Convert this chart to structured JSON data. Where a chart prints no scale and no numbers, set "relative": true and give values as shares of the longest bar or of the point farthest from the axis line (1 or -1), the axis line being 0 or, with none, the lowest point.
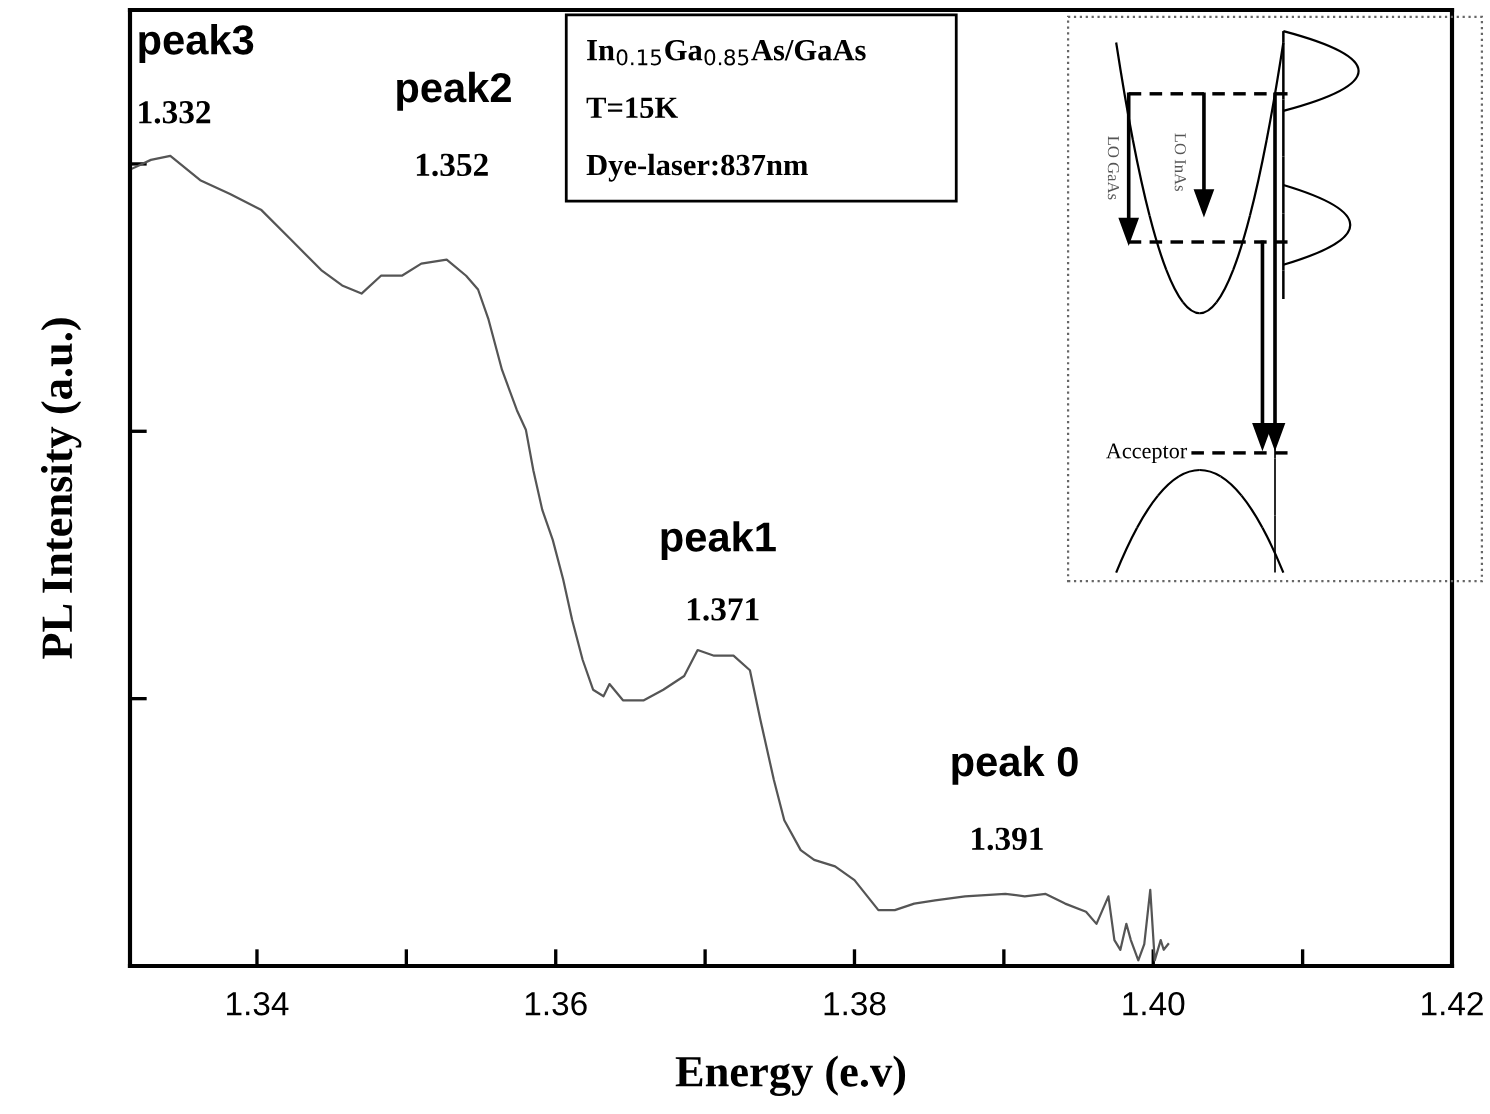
{
  "chart_data": {
    "type": "line",
    "relative": true,
    "xlabel": "Energy (e.v)",
    "ylabel": "PL Intensity (a.u.)",
    "xlim": [
      1.3315,
      1.42
    ],
    "xticks": [
      {
        "value": 1.34,
        "label": "1.34"
      },
      {
        "value": 1.35,
        "label": null
      },
      {
        "value": 1.36,
        "label": "1.36"
      },
      {
        "value": 1.37,
        "label": null
      },
      {
        "value": 1.38,
        "label": "1.38"
      },
      {
        "value": 1.39,
        "label": null
      },
      {
        "value": 1.4,
        "label": "1.40"
      },
      {
        "value": 1.41,
        "label": null
      },
      {
        "value": 1.42,
        "label": "1.42"
      }
    ],
    "grid": false,
    "legend": false,
    "marker": "none",
    "line_style": "solid",
    "series": [
      {
        "color": "#555555",
        "x": [
          1.3315,
          1.3329,
          1.3342,
          1.3362,
          1.3382,
          1.3403,
          1.3423,
          1.3443,
          1.3457,
          1.347,
          1.3483,
          1.3497,
          1.351,
          1.3527,
          1.354,
          1.3548,
          1.3555,
          1.3564,
          1.3574,
          1.358,
          1.3585,
          1.3591,
          1.3598,
          1.3605,
          1.3611,
          1.3618,
          1.3625,
          1.3632,
          1.3636,
          1.3645,
          1.3659,
          1.3672,
          1.3686,
          1.3695,
          1.3706,
          1.3719,
          1.373,
          1.3737,
          1.3746,
          1.3753,
          1.3764,
          1.3773,
          1.3787,
          1.38,
          1.3816,
          1.3827,
          1.384,
          1.3854,
          1.3874,
          1.3901,
          1.3914,
          1.3928,
          1.3941,
          1.3955,
          1.3962,
          1.3966,
          1.397,
          1.3974,
          1.3978,
          1.3982,
          1.3985,
          1.399,
          1.3994,
          1.3998,
          1.4001,
          1.4005,
          1.4007,
          1.401
        ],
        "values": [
          0.983,
          0.995,
          1.0,
          0.97,
          0.953,
          0.933,
          0.896,
          0.859,
          0.84,
          0.83,
          0.852,
          0.852,
          0.867,
          0.872,
          0.852,
          0.835,
          0.798,
          0.736,
          0.686,
          0.662,
          0.612,
          0.563,
          0.526,
          0.477,
          0.427,
          0.378,
          0.341,
          0.333,
          0.348,
          0.328,
          0.328,
          0.341,
          0.358,
          0.39,
          0.383,
          0.383,
          0.365,
          0.304,
          0.23,
          0.18,
          0.143,
          0.131,
          0.123,
          0.106,
          0.069,
          0.069,
          0.077,
          0.081,
          0.086,
          0.089,
          0.086,
          0.089,
          0.077,
          0.067,
          0.052,
          0.069,
          0.086,
          0.032,
          0.02,
          0.052,
          0.032,
          0.007,
          0.027,
          0.094,
          0.007,
          0.032,
          0.02,
          0.027
        ]
      }
    ],
    "annotations": [
      "peak3",
      "1.332",
      "peak2",
      "1.352",
      "peak1",
      "1.371",
      "peak 0",
      "1.391",
      "In$_{0.15}$Ga$_{0.85}$As/GaAs",
      "T=15K",
      "Dye-laser:837nm",
      "LO GaAs",
      "LO InAs",
      "Acceptor"
    ]
  }
}
